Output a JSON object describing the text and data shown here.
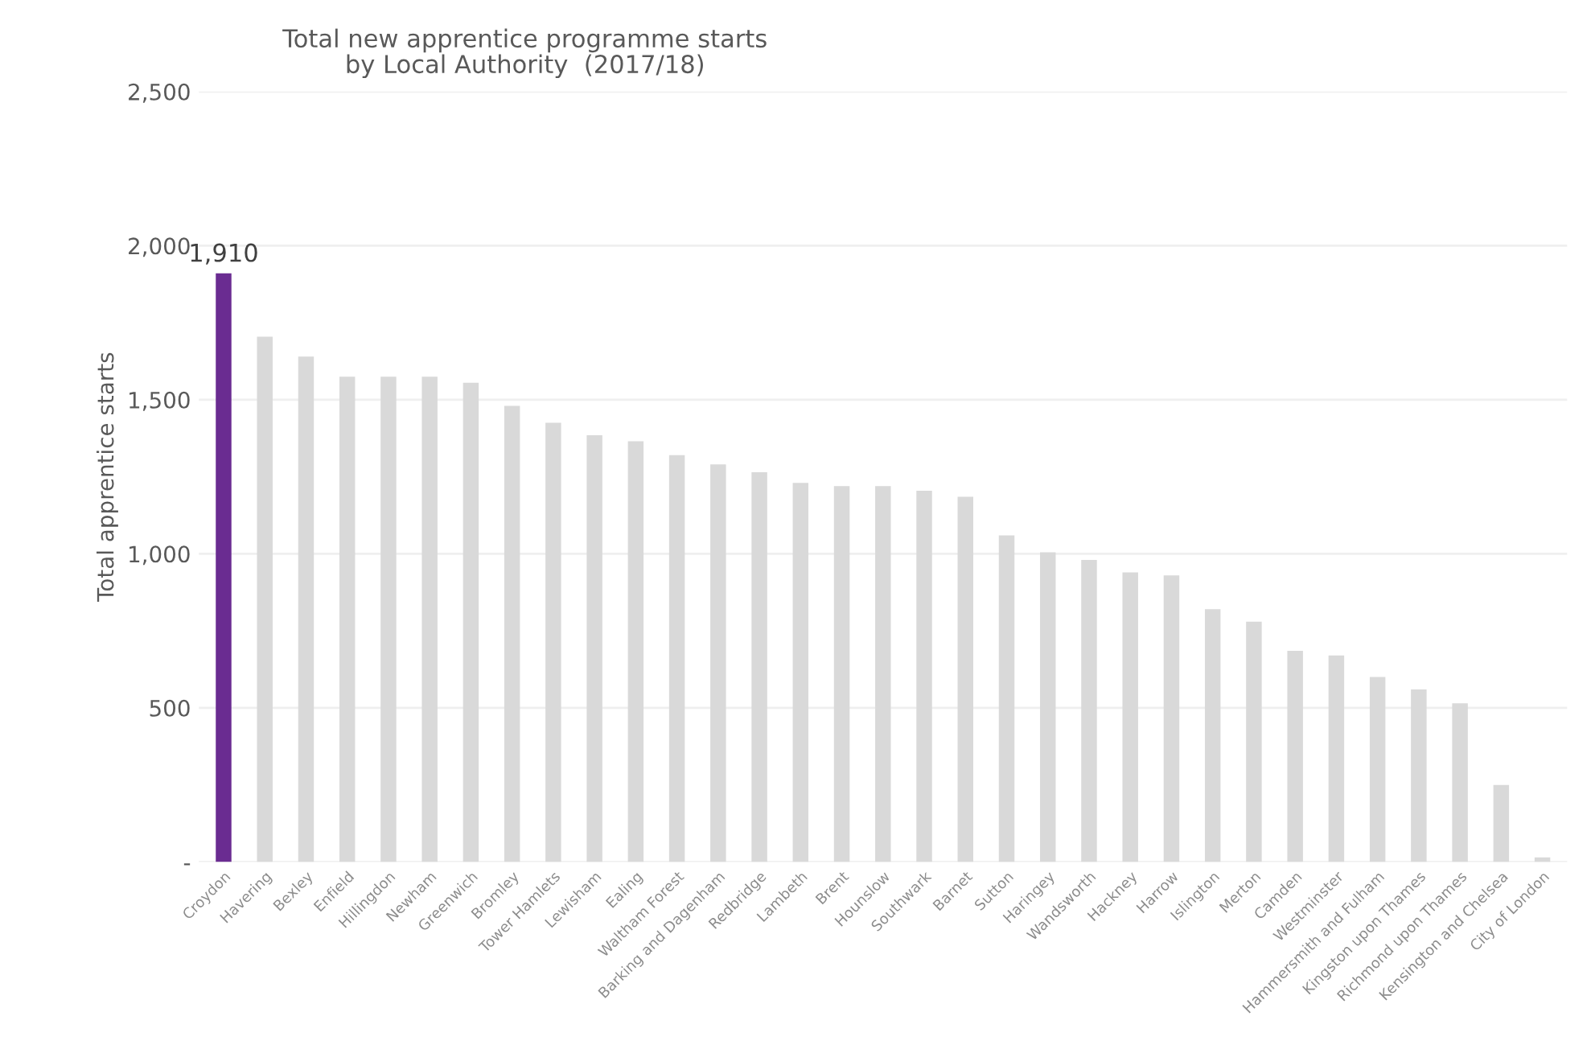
{
  "chart_data": {
    "type": "bar",
    "title": "Total new apprentice programme starts\nby Local Authority  (2017/18)",
    "ylabel": "Total apprentice starts",
    "categories": [
      "Croydon",
      "Havering",
      "Bexley",
      "Enfield",
      "Hillingdon",
      "Newham",
      "Greenwich",
      "Bromley",
      "Tower Hamlets",
      "Lewisham",
      "Ealing",
      "Waltham Forest",
      "Barking and Dagenham",
      "Redbridge",
      "Lambeth",
      "Brent",
      "Hounslow",
      "Southwark",
      "Barnet",
      "Sutton",
      "Haringey",
      "Wandsworth",
      "Hackney",
      "Harrow",
      "Islington",
      "Merton",
      "Camden",
      "Westminster",
      "Hammersmith and Fulham",
      "Kingston upon Thames",
      "Richmond upon Thames",
      "Kensington and Chelsea",
      "City of London"
    ],
    "values": [
      1910,
      1705,
      1640,
      1575,
      1575,
      1575,
      1555,
      1480,
      1425,
      1385,
      1365,
      1320,
      1290,
      1265,
      1230,
      1220,
      1220,
      1205,
      1185,
      1060,
      1005,
      980,
      940,
      930,
      820,
      780,
      685,
      670,
      600,
      560,
      515,
      250,
      15
    ],
    "colors": [
      "#6a2c91",
      "#d9d9d9",
      "#d9d9d9",
      "#d9d9d9",
      "#d9d9d9",
      "#d9d9d9",
      "#d9d9d9",
      "#d9d9d9",
      "#d9d9d9",
      "#d9d9d9",
      "#d9d9d9",
      "#d9d9d9",
      "#d9d9d9",
      "#d9d9d9",
      "#d9d9d9",
      "#d9d9d9",
      "#d9d9d9",
      "#d9d9d9",
      "#d9d9d9",
      "#d9d9d9",
      "#d9d9d9",
      "#d9d9d9",
      "#d9d9d9",
      "#d9d9d9",
      "#d9d9d9",
      "#d9d9d9",
      "#d9d9d9",
      "#d9d9d9",
      "#d9d9d9",
      "#d9d9d9",
      "#d9d9d9",
      "#d9d9d9",
      "#d9d9d9"
    ],
    "value_labels": [
      "1,910",
      null,
      null,
      null,
      null,
      null,
      null,
      null,
      null,
      null,
      null,
      null,
      null,
      null,
      null,
      null,
      null,
      null,
      null,
      null,
      null,
      null,
      null,
      null,
      null,
      null,
      null,
      null,
      null,
      null,
      null,
      null,
      null
    ],
    "ylim": [
      0,
      2500
    ],
    "yticks": [
      {
        "value": 0,
        "label": "-"
      },
      {
        "value": 500,
        "label": "500"
      },
      {
        "value": 1000,
        "label": "1,000"
      },
      {
        "value": 1500,
        "label": "1,500"
      },
      {
        "value": 2000,
        "label": "2,000"
      },
      {
        "value": 2500,
        "label": "2,500"
      }
    ],
    "grid": "y"
  }
}
